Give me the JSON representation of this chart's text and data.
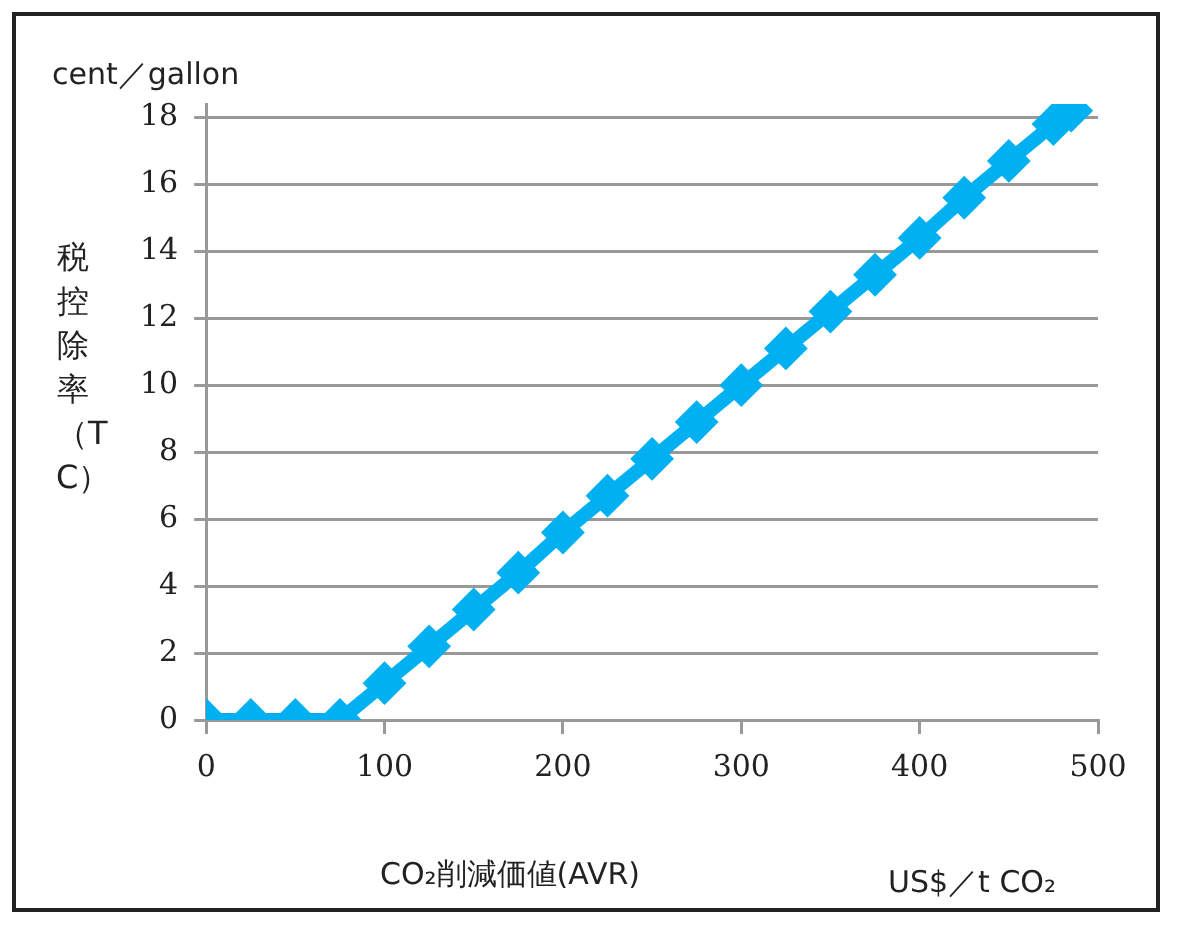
{
  "chart_data": {
    "type": "line",
    "xlabel": "CO₂削減価値(AVR)",
    "ylabel": "税控除率（TC）",
    "annotations": [
      "cent／gallon",
      "US$／t CO₂"
    ],
    "x": [
      0,
      25,
      50,
      75,
      100,
      125,
      150,
      175,
      200,
      225,
      250,
      275,
      300,
      325,
      350,
      375,
      400,
      425,
      450,
      475,
      485
    ],
    "series": [
      {
        "color": "#00b0f0",
        "values": [
          0,
          0,
          0,
          0,
          1.1,
          2.2,
          3.3,
          4.4,
          5.6,
          6.7,
          7.8,
          8.9,
          10,
          11.1,
          12.2,
          13.3,
          14.4,
          15.6,
          16.7,
          17.8,
          18.2
        ]
      }
    ],
    "xlim": [
      0,
      500
    ],
    "xticks": [
      0,
      100,
      200,
      300,
      400,
      500
    ],
    "ylim": [
      0,
      18.4
    ],
    "yticks": [
      0,
      2,
      4,
      6,
      8,
      10,
      12,
      14,
      16,
      18
    ],
    "grid": "y",
    "legend": false,
    "marker": "diamond",
    "line_style": "solid"
  }
}
